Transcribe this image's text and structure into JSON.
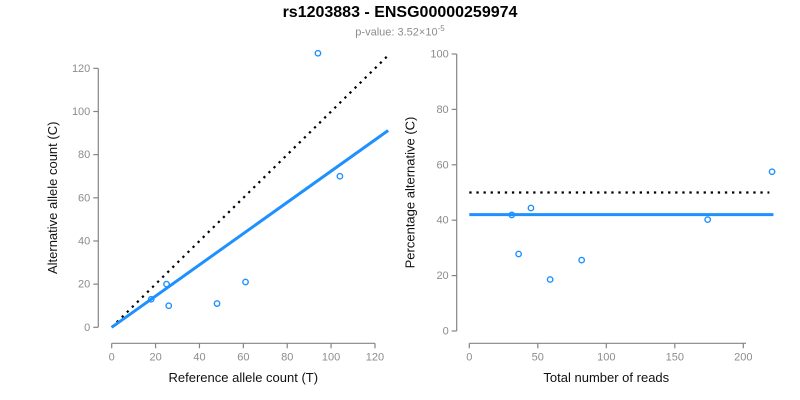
{
  "header": {
    "title": "rs1203883 - ENSG00000259974",
    "pvalue_prefix": "p-value: 3.52×10",
    "pvalue_exponent": "-5"
  },
  "colors": {
    "accent_blue": "#1E90FF",
    "axis_gray": "#858585",
    "tick_label_gray": "#8c8c8c",
    "dotted_black": "#000000"
  },
  "chart_data": [
    {
      "type": "scatter",
      "name": "allele-count-scatter",
      "xlabel": "Reference allele count (T)",
      "ylabel": "Alternative allele count (C)",
      "xticks": [
        0,
        20,
        40,
        60,
        80,
        100,
        120
      ],
      "yticks": [
        0,
        20,
        40,
        60,
        80,
        100,
        120
      ],
      "xlim": [
        0,
        126
      ],
      "ylim": [
        0,
        128
      ],
      "grid": false,
      "legend": "none",
      "point_color": "#1E90FF",
      "points": [
        {
          "x": 18,
          "y": 13
        },
        {
          "x": 25,
          "y": 20
        },
        {
          "x": 26,
          "y": 10
        },
        {
          "x": 48,
          "y": 11
        },
        {
          "x": 61,
          "y": 21
        },
        {
          "x": 104,
          "y": 70
        },
        {
          "x": 94,
          "y": 127
        }
      ],
      "lines": [
        {
          "name": "identity-line",
          "style": "dotted",
          "color": "#000000",
          "width": 2.2,
          "x1": 0,
          "y1": 0,
          "x2": 126,
          "y2": 126
        },
        {
          "name": "fit-line",
          "style": "solid",
          "color": "#1E90FF",
          "width": 3,
          "x1": 0,
          "y1": 0,
          "x2": 126,
          "y2": 91.2
        }
      ]
    },
    {
      "type": "scatter",
      "name": "percentage-alternative-scatter",
      "xlabel": "Total number of reads",
      "ylabel": "Percentage alternative (C)",
      "xticks": [
        0,
        50,
        100,
        150,
        200
      ],
      "yticks": [
        0,
        20,
        40,
        60,
        80,
        100
      ],
      "xlim": [
        0,
        223
      ],
      "ylim": [
        0,
        100
      ],
      "grid": false,
      "legend": "none",
      "point_color": "#1E90FF",
      "points": [
        {
          "x": 31,
          "y": 41.9
        },
        {
          "x": 45,
          "y": 44.4
        },
        {
          "x": 36,
          "y": 27.8
        },
        {
          "x": 59,
          "y": 18.6
        },
        {
          "x": 82,
          "y": 25.6
        },
        {
          "x": 174,
          "y": 40.2
        },
        {
          "x": 221,
          "y": 57.5
        }
      ],
      "lines": [
        {
          "name": "fifty-percent-line",
          "style": "dotted",
          "color": "#000000",
          "width": 2.2,
          "x1": 0,
          "y1": 50,
          "x2": 219,
          "y2": 50
        },
        {
          "name": "mean-percentage-line",
          "style": "solid",
          "color": "#1E90FF",
          "width": 3,
          "x1": 0,
          "y1": 42,
          "x2": 222,
          "y2": 42
        }
      ]
    }
  ]
}
